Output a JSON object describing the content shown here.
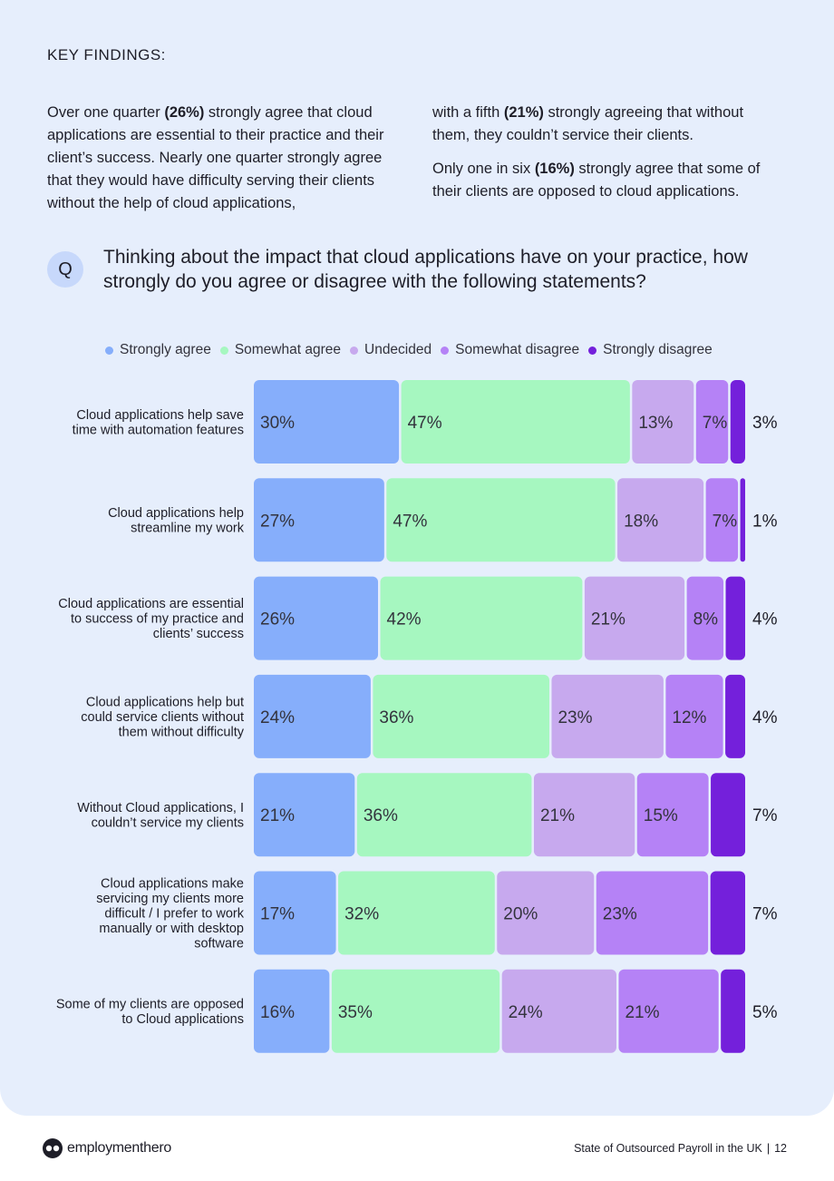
{
  "heading": "KEY FINDINGS:",
  "findings": {
    "left_paragraph": [
      {
        "t": "Over one quarter ",
        "b": false
      },
      {
        "t": "(26%)",
        "b": true
      },
      {
        "t": " strongly agree that cloud applications are essential to their practice and their client’s success. Nearly one quarter strongly agree that they would have difficulty serving their clients without the help of cloud applications,",
        "b": false
      }
    ],
    "right_paragraph_1": [
      {
        "t": "with a fifth ",
        "b": false
      },
      {
        "t": "(21%)",
        "b": true
      },
      {
        "t": " strongly agreeing that without them, they couldn’t service their clients.",
        "b": false
      }
    ],
    "right_paragraph_2": [
      {
        "t": "Only one in six ",
        "b": false
      },
      {
        "t": "(16%)",
        "b": true
      },
      {
        "t": " strongly agree that some of their clients are opposed to cloud applications.",
        "b": false
      }
    ]
  },
  "question": {
    "badge": "Q",
    "text": "Thinking about the impact that cloud applications have on your practice, how strongly do you agree or disagree with the following statements?"
  },
  "chart_data": {
    "type": "bar",
    "orientation": "horizontal",
    "stacked": true,
    "legend_position": "top",
    "unit": "%",
    "categories": [
      [
        "Cloud applications help save",
        "time with automation features"
      ],
      [
        "Cloud applications help",
        "streamline my work"
      ],
      [
        "Cloud applications are essential",
        "to success of my practice and",
        "clients’ success"
      ],
      [
        "Cloud applications help but",
        "could service clients without",
        "them without difficulty"
      ],
      [
        "Without Cloud applications, I",
        "couldn’t service my clients"
      ],
      [
        "Cloud applications make",
        "servicing my clients more",
        "difficult / I prefer to work",
        "manually or with desktop",
        "software"
      ],
      [
        "Some of my clients are opposed",
        "to Cloud applications"
      ]
    ],
    "series": [
      {
        "name": "Strongly agree",
        "color": "#86aefb",
        "values": [
          30,
          27,
          26,
          24,
          21,
          17,
          16
        ]
      },
      {
        "name": "Somewhat agree",
        "color": "#a6f7c0",
        "values": [
          47,
          47,
          42,
          36,
          36,
          32,
          35
        ]
      },
      {
        "name": "Undecided",
        "color": "#c7a9ee",
        "values": [
          13,
          18,
          21,
          23,
          21,
          20,
          24
        ]
      },
      {
        "name": "Somewhat disagree",
        "color": "#b582f6",
        "values": [
          7,
          7,
          8,
          12,
          15,
          23,
          21
        ]
      },
      {
        "name": "Strongly disagree",
        "color": "#7420db",
        "values": [
          3,
          1,
          4,
          4,
          7,
          7,
          5
        ]
      }
    ]
  },
  "footer": {
    "brand": "employmenthero",
    "report_title": "State of Outsourced Payroll in the UK",
    "separator": "|",
    "page_number": "12"
  }
}
